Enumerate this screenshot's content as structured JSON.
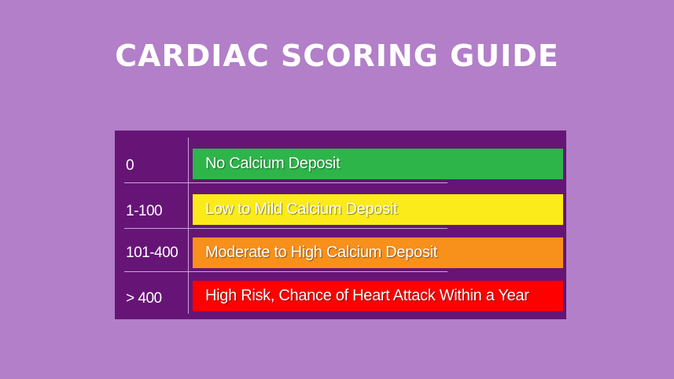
{
  "title": "CARDIAC SCORING GUIDE",
  "rows": [
    {
      "score": "0",
      "label": "No Calcium Deposit",
      "color": "#2db54a"
    },
    {
      "score": "1-100",
      "label": "Low to Mild Calcium Deposit",
      "color": "#fbeb1a"
    },
    {
      "score": "101-400",
      "label": "Moderate to High Calcium Deposit",
      "color": "#f8901c"
    },
    {
      "score": "> 400",
      "label": "High Risk, Chance of Heart Attack Within a Year",
      "color": "#fe0000"
    }
  ],
  "colors": {
    "background": "#b27fc8",
    "panel": "#661577",
    "divider": "#c9a5d6",
    "text": "#ffffff"
  }
}
